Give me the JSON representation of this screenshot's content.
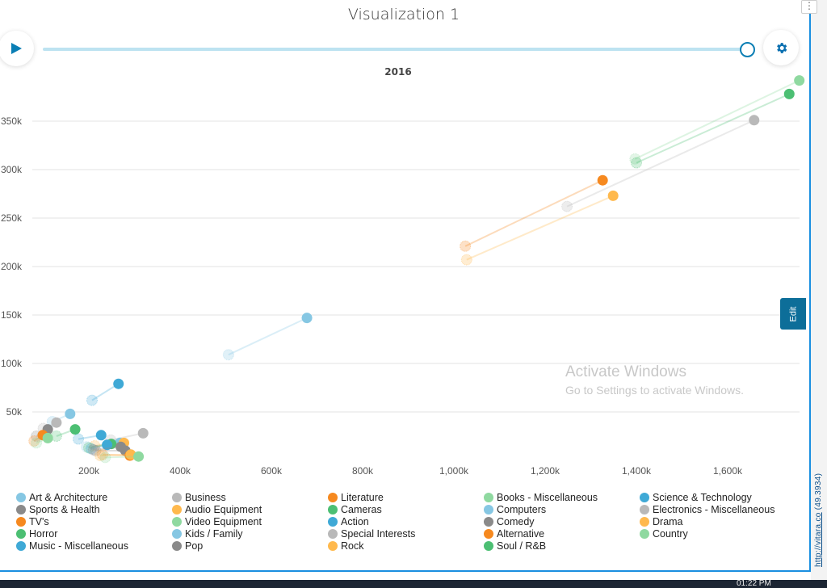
{
  "title": "Visualization 1",
  "menu_icon": "more-vertical-icon",
  "play_icon": "play-icon",
  "settings_icon": "gear-icon",
  "timeline": {
    "current": "2016",
    "progress": 1.0
  },
  "edit_label": "Edit",
  "credit": {
    "link": "http://vitara.co",
    "version": "(49.3934)"
  },
  "watermark": {
    "line1": "Activate Windows",
    "line2": "Go to Settings to activate Windows."
  },
  "taskbar": {
    "clock": "01:22 PM"
  },
  "chart_data": {
    "type": "scatter",
    "subtype": "motion-bubble-trails",
    "title": "",
    "xlabel": "",
    "ylabel": "",
    "xlim": [
      0,
      1760000
    ],
    "ylim": [
      0,
      395000
    ],
    "grid": "horizontal",
    "legend_placement": "bottom",
    "x_ticks": [
      "200k",
      "400k",
      "600k",
      "800k",
      "1,000k",
      "1,200k",
      "1,400k",
      "1,600k"
    ],
    "x_tick_values": [
      200000,
      400000,
      600000,
      800000,
      1000000,
      1200000,
      1400000,
      1600000
    ],
    "y_ticks": [
      "50k",
      "100k",
      "150k",
      "200k",
      "250k",
      "300k",
      "350k"
    ],
    "y_tick_values": [
      50000,
      100000,
      150000,
      200000,
      250000,
      300000,
      350000
    ],
    "legend": [
      {
        "name": "Art & Architecture",
        "color": "#86c7e3"
      },
      {
        "name": "Sports & Health",
        "color": "#8a8a8a"
      },
      {
        "name": "TV's",
        "color": "#f6891f"
      },
      {
        "name": "Horror",
        "color": "#4cbf73"
      },
      {
        "name": "Music - Miscellaneous",
        "color": "#3fa9d6"
      },
      {
        "name": "Business",
        "color": "#b9b9b9"
      },
      {
        "name": "Audio Equipment",
        "color": "#ffb94d"
      },
      {
        "name": "Video Equipment",
        "color": "#8fd9a0"
      },
      {
        "name": "Kids / Family",
        "color": "#86c7e3"
      },
      {
        "name": "Pop",
        "color": "#8a8a8a"
      },
      {
        "name": "Literature",
        "color": "#f6891f"
      },
      {
        "name": "Cameras",
        "color": "#4cbf73"
      },
      {
        "name": "Action",
        "color": "#3fa9d6"
      },
      {
        "name": "Special Interests",
        "color": "#b9b9b9"
      },
      {
        "name": "Rock",
        "color": "#ffb94d"
      },
      {
        "name": "Books - Miscellaneous",
        "color": "#8fd9a0"
      },
      {
        "name": "Computers",
        "color": "#86c7e3"
      },
      {
        "name": "Comedy",
        "color": "#8a8a8a"
      },
      {
        "name": "Alternative",
        "color": "#f6891f"
      },
      {
        "name": "Soul / R&B",
        "color": "#4cbf73"
      },
      {
        "name": "Science & Technology",
        "color": "#3fa9d6"
      },
      {
        "name": "Electronics - Miscellaneous",
        "color": "#b9b9b9"
      },
      {
        "name": "Drama",
        "color": "#ffb94d"
      },
      {
        "name": "Country",
        "color": "#8fd9a0"
      }
    ],
    "trails": [
      {
        "color": "#8fd9a0",
        "from": [
          1397000,
          311000
        ],
        "to": [
          1757000,
          392000
        ]
      },
      {
        "color": "#4cbf73",
        "from": [
          1400000,
          307000
        ],
        "to": [
          1735000,
          378000
        ]
      },
      {
        "color": "#b9b9b9",
        "from": [
          1248000,
          262000
        ],
        "to": [
          1658000,
          351000
        ]
      },
      {
        "color": "#f6891f",
        "from": [
          1025000,
          221000
        ],
        "to": [
          1326000,
          289000
        ]
      },
      {
        "color": "#ffb94d",
        "from": [
          1028000,
          207000
        ],
        "to": [
          1349000,
          273000
        ]
      },
      {
        "color": "#86c7e3",
        "from": [
          506000,
          109000
        ],
        "to": [
          678000,
          147000
        ]
      },
      {
        "color": "#3fa9d6",
        "from": [
          207000,
          62000
        ],
        "to": [
          265000,
          79000
        ]
      },
      {
        "color": "#86c7e3",
        "from": [
          120000,
          40000
        ],
        "to": [
          159000,
          48000
        ]
      },
      {
        "color": "#b9b9b9",
        "from": [
          100000,
          33000
        ],
        "to": [
          129000,
          39000
        ]
      },
      {
        "color": "#8a8a8a",
        "from": [
          85000,
          25000
        ],
        "to": [
          110000,
          32000
        ]
      },
      {
        "color": "#4cbf73",
        "from": [
          129000,
          25000
        ],
        "to": [
          170000,
          32000
        ]
      },
      {
        "color": "#f6891f",
        "from": [
          80000,
          20000
        ],
        "to": [
          99000,
          26000
        ]
      },
      {
        "color": "#8fd9a0",
        "from": [
          85000,
          18000
        ],
        "to": [
          110000,
          23000
        ]
      },
      {
        "color": "#b9b9b9",
        "from": [
          248000,
          21000
        ],
        "to": [
          319000,
          28000
        ]
      },
      {
        "color": "#3fa9d6",
        "from": [
          177000,
          22000
        ],
        "to": [
          227000,
          26000
        ]
      },
      {
        "color": "#86c7e3",
        "from": [
          195000,
          14000
        ],
        "to": [
          268000,
          18000
        ]
      },
      {
        "color": "#ffb94d",
        "from": [
          213000,
          15000
        ],
        "to": [
          277000,
          18000
        ]
      },
      {
        "color": "#4cbf73",
        "from": [
          200000,
          13000
        ],
        "to": [
          249000,
          17000
        ]
      },
      {
        "color": "#3fa9d6",
        "from": [
          205000,
          12000
        ],
        "to": [
          240000,
          16000
        ]
      },
      {
        "color": "#8a8a8a",
        "from": [
          215000,
          10000
        ],
        "to": [
          280000,
          10000
        ]
      },
      {
        "color": "#8a8a8a",
        "from": [
          210000,
          11000
        ],
        "to": [
          270000,
          14000
        ]
      },
      {
        "color": "#f6891f",
        "from": [
          230000,
          6000
        ],
        "to": [
          290000,
          5000
        ]
      },
      {
        "color": "#ffb94d",
        "from": [
          225000,
          5000
        ],
        "to": [
          292000,
          6000
        ]
      },
      {
        "color": "#8fd9a0",
        "from": [
          236000,
          3000
        ],
        "to": [
          309000,
          4000
        ]
      }
    ]
  }
}
